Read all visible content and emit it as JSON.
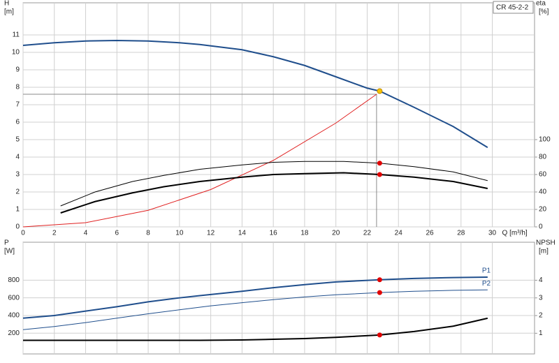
{
  "chart_data": [
    {
      "type": "line",
      "label": "CR 45-2-2",
      "y_label": "H",
      "y_unit": "[m]",
      "y2_label": "eta",
      "y2_unit": "[%]",
      "x_label": "Q [m³/h]",
      "xlim": [
        0,
        32.7
      ],
      "xticks": [
        0,
        2,
        4,
        6,
        8,
        10,
        12,
        14,
        16,
        18,
        20,
        22,
        24,
        26,
        28,
        30
      ],
      "x_tick_labels": true,
      "ylim": [
        0,
        12
      ],
      "yticks": [
        0,
        1,
        2,
        3,
        4,
        5,
        6,
        7,
        8,
        9,
        10,
        11
      ],
      "y2lim": [
        0,
        240
      ],
      "y2ticks": [
        0,
        20,
        40,
        60,
        80,
        100
      ],
      "grid": true,
      "crosshair": {
        "x": 22.6,
        "y": 7.6,
        "color": "#8a8a8a"
      },
      "series": [
        {
          "color": "#1f4e8c",
          "line_width": 2,
          "x": [
            0,
            2,
            4,
            6,
            8,
            10,
            11.3,
            14,
            16,
            18,
            20,
            22,
            22.8,
            25,
            27.5,
            29.7
          ],
          "values": [
            10.4,
            10.55,
            10.65,
            10.68,
            10.65,
            10.55,
            10.45,
            10.15,
            9.75,
            9.25,
            8.6,
            7.95,
            7.78,
            6.85,
            5.75,
            4.55
          ]
        },
        {
          "color": "#e02020",
          "line_width": 1,
          "x": [
            0,
            4,
            8,
            12,
            16,
            20,
            22.6
          ],
          "values": [
            0,
            0.24,
            0.95,
            2.14,
            3.81,
            5.95,
            7.6
          ]
        },
        {
          "color": "#000000",
          "line_width": 1,
          "axis": "y2",
          "x": [
            2.4,
            4.6,
            7,
            9,
            11.3,
            14,
            16,
            18,
            20.5,
            22.8,
            25,
            27.5,
            29.7
          ],
          "values": [
            24,
            40,
            52,
            59,
            66,
            71,
            74,
            75,
            75,
            73,
            69,
            63,
            53
          ]
        },
        {
          "color": "#000000",
          "line_width": 2,
          "axis": "y2",
          "x": [
            2.4,
            4.6,
            7,
            9,
            11.3,
            14,
            16,
            18,
            20.5,
            22.8,
            25,
            27.5,
            29.7
          ],
          "values": [
            16,
            29,
            39,
            46,
            52,
            57,
            60,
            61,
            62,
            60,
            57,
            52,
            44
          ]
        }
      ],
      "markers": [
        {
          "x": 22.8,
          "y": 7.78,
          "color": "#f5c400"
        },
        {
          "x": 22.8,
          "y": 73,
          "axis": "y2",
          "color": "#e00000"
        },
        {
          "x": 22.8,
          "y": 60,
          "axis": "y2",
          "color": "#e00000"
        }
      ]
    },
    {
      "type": "line",
      "y_label": "P",
      "y_unit": "[W]",
      "y2_label": "NPSH",
      "y2_unit": "[m]",
      "xlim": [
        0,
        32.7
      ],
      "xticks": [
        0,
        2,
        4,
        6,
        8,
        10,
        12,
        14,
        16,
        18,
        20,
        22,
        24,
        26,
        28,
        30
      ],
      "x_tick_labels": false,
      "ylim": [
        -35,
        1230
      ],
      "yticks": [
        200,
        400,
        600,
        800
      ],
      "y2lim": [
        -0.17,
        6.15
      ],
      "y2ticks": [
        1,
        2,
        3,
        4
      ],
      "grid": true,
      "series": [
        {
          "name": "P1",
          "color": "#1f4e8c",
          "line_width": 2,
          "x": [
            0,
            2,
            4,
            6,
            8,
            10,
            11.3,
            14,
            16,
            18,
            20,
            22.8,
            25,
            27.5,
            29.7
          ],
          "values": [
            370,
            400,
            450,
            500,
            555,
            600,
            625,
            675,
            715,
            750,
            780,
            805,
            820,
            830,
            835
          ]
        },
        {
          "name": "P2",
          "color": "#1f4e8c",
          "line_width": 1,
          "x": [
            0,
            2,
            4,
            6,
            8,
            10,
            12,
            14,
            16,
            18,
            20,
            22.8,
            25,
            27.5,
            29.7
          ],
          "values": [
            240,
            275,
            320,
            370,
            420,
            465,
            510,
            545,
            580,
            610,
            635,
            660,
            675,
            685,
            690
          ]
        },
        {
          "color": "#000000",
          "line_width": 2,
          "axis": "y2",
          "x": [
            0,
            11.3,
            14,
            16,
            18,
            20,
            22.8,
            25,
            27.5,
            29.7
          ],
          "values": [
            0.6,
            0.6,
            0.62,
            0.66,
            0.7,
            0.77,
            0.9,
            1.1,
            1.4,
            1.85
          ]
        }
      ],
      "markers": [
        {
          "x": 22.8,
          "y": 805,
          "color": "#e00000"
        },
        {
          "x": 22.8,
          "y": 660,
          "color": "#e00000"
        },
        {
          "x": 22.8,
          "y": 0.9,
          "axis": "y2",
          "color": "#e00000"
        }
      ]
    }
  ]
}
